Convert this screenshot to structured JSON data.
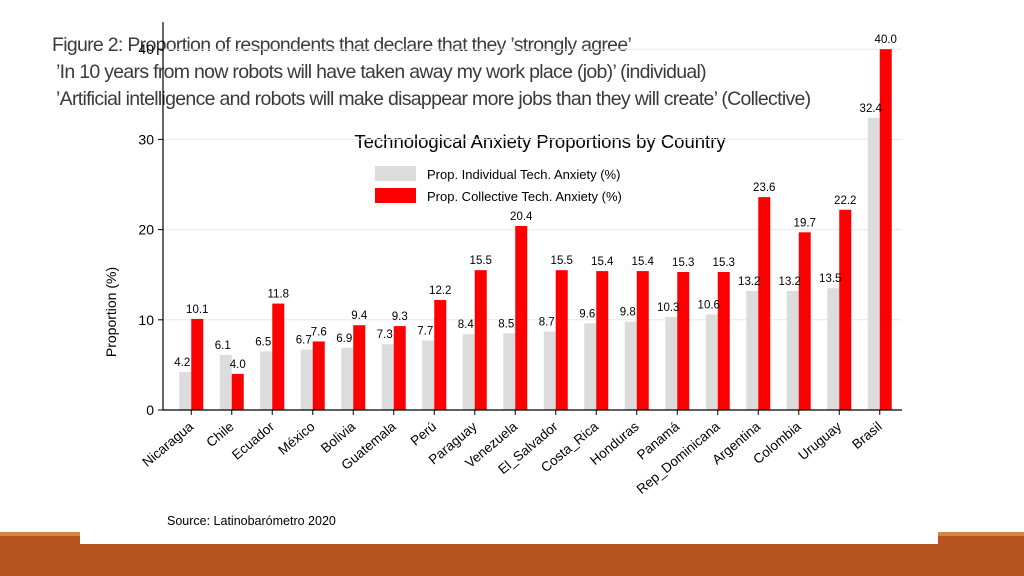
{
  "caption": {
    "line1": "Figure 2: Proportion of respondents that declare that they ’strongly agree’",
    "line2": "’In 10 years from now robots will have taken away my work place (job)’ (individual)",
    "line3": "’Artificial intelligence and robots will make disappear more jobs than they will create’ (Collective)"
  },
  "colors": {
    "individual": "#dcdcdc",
    "collective": "#ff0000",
    "footer_bar": "#b5541f",
    "footer_line": "#cf8a3a"
  },
  "chart_data": {
    "type": "bar",
    "title": "Technological Anxiety Proportions by Country",
    "ylabel": "Proportion (%)",
    "xlabel": "",
    "ylim": [
      0,
      43
    ],
    "yticks": [
      0,
      10,
      20,
      30,
      40
    ],
    "grid": true,
    "legend_position": "top-center",
    "source": "Source: Latinobarómetro 2020",
    "categories": [
      "Nicaragua",
      "Chile",
      "Ecuador",
      "México",
      "Bolivia",
      "Guatemala",
      "Perú",
      "Paraguay",
      "Venezuela",
      "El_Salvador",
      "Costa_Rica",
      "Honduras",
      "Panamá",
      "Rep_Dominicana",
      "Argentina",
      "Colombia",
      "Uruguay",
      "Brasil"
    ],
    "series": [
      {
        "name": "Prop. Individual Tech. Anxiety (%)",
        "values": [
          4.2,
          6.1,
          6.5,
          6.7,
          6.9,
          7.3,
          7.7,
          8.4,
          8.5,
          8.7,
          9.6,
          9.8,
          10.3,
          10.6,
          13.2,
          13.2,
          13.5,
          32.4
        ]
      },
      {
        "name": "Prop. Collective Tech. Anxiety (%)",
        "values": [
          10.1,
          4.0,
          11.8,
          7.6,
          9.4,
          9.3,
          12.2,
          15.5,
          20.4,
          15.5,
          15.4,
          15.4,
          15.3,
          15.3,
          23.6,
          19.7,
          22.2,
          40.0
        ]
      }
    ]
  }
}
